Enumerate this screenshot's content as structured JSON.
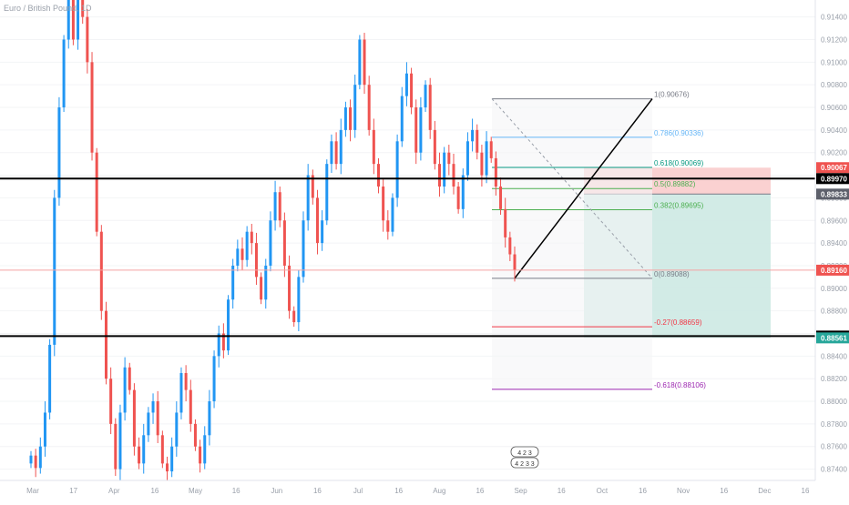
{
  "title": "Euro / British Pound, 1D",
  "chart_data": {
    "type": "candlestick",
    "y_axis": {
      "ticks": [
        0.914,
        0.912,
        0.91,
        0.908,
        0.906,
        0.904,
        0.902,
        0.9,
        0.898,
        0.896,
        0.894,
        0.892,
        0.89,
        0.888,
        0.886,
        0.884,
        0.882,
        0.88,
        0.878,
        0.876,
        0.874
      ],
      "tick_labels": [
        "0.91400",
        "0.91200",
        "0.91000",
        "0.90800",
        "0.90600",
        "0.90400",
        "0.90200",
        "0.90000",
        "0.89800",
        "0.89600",
        "0.89400",
        "0.89200",
        "0.89000",
        "0.88800",
        "0.88600",
        "0.88400",
        "0.88200",
        "0.88000",
        "0.87800",
        "0.87600",
        "0.87400"
      ],
      "range": [
        0.873,
        0.9155
      ]
    },
    "x_axis": {
      "labels": [
        "Mar",
        "17",
        "Apr",
        "16",
        "May",
        "16",
        "Jun",
        "16",
        "Jul",
        "16",
        "Aug",
        "16",
        "Sep",
        "16",
        "Oct",
        "16",
        "Nov",
        "16",
        "Dec",
        "16"
      ]
    },
    "price_tags": [
      {
        "value": 0.90067,
        "label": "0.90067",
        "color": "#ef5350",
        "text_color": "#ffffff"
      },
      {
        "value": 0.8997,
        "label": "0.89970",
        "color": "#000000",
        "text_color": "#ffffff"
      },
      {
        "value": 0.89833,
        "label": "0.89833",
        "color": "#5d606b",
        "text_color": "#ffffff"
      },
      {
        "value": 0.8916,
        "label": "0.89160",
        "color": "#ef5350",
        "text_color": "#ffffff"
      },
      {
        "value": 0.88577,
        "label": "0.88577",
        "color": "#000000",
        "text_color": "#ffffff"
      },
      {
        "value": 0.88561,
        "label": "0.88561",
        "color": "#26a69a",
        "text_color": "#ffffff"
      }
    ],
    "horizontal_lines": [
      {
        "value": 0.8997,
        "color": "#000000"
      },
      {
        "value": 0.88577,
        "color": "#000000"
      },
      {
        "value": 0.8916,
        "color": "#f4a3a3"
      }
    ],
    "fibonacci": [
      {
        "label": "1(0.90676)",
        "value": 0.90676,
        "color": "#787b86"
      },
      {
        "label": "0.786(0.90336)",
        "value": 0.90336,
        "color": "#64b5f6"
      },
      {
        "label": "0.618(0.90069)",
        "value": 0.90069,
        "color": "#089981"
      },
      {
        "label": "0.5(0.89882)",
        "value": 0.89882,
        "color": "#4caf50"
      },
      {
        "label": "0.382(0.89695)",
        "value": 0.89695,
        "color": "#4caf50"
      },
      {
        "label": "0(0.89088)",
        "value": 0.89088,
        "color": "#787b86"
      },
      {
        "label": "-0.27(0.88659)",
        "value": 0.88659,
        "color": "#f23645"
      },
      {
        "label": "-0.618(0.88106)",
        "value": 0.88106,
        "color": "#9c27b0"
      }
    ],
    "position_tool": {
      "stop": 0.90067,
      "entry": 0.89833,
      "target": 0.88561,
      "loss_color": "#f9c6c6",
      "profit_color": "#cde9e3"
    },
    "candles_seed": [
      [
        0.8745,
        0.8752
      ],
      [
        0.8752,
        0.8741
      ],
      [
        0.8741,
        0.876
      ],
      [
        0.876,
        0.879
      ],
      [
        0.879,
        0.885
      ],
      [
        0.885,
        0.898
      ],
      [
        0.898,
        0.906
      ],
      [
        0.906,
        0.912
      ],
      [
        0.912,
        0.916
      ],
      [
        0.916,
        0.912
      ],
      [
        0.912,
        0.918
      ],
      [
        0.918,
        0.914
      ],
      [
        0.914,
        0.91
      ],
      [
        0.91,
        0.902
      ],
      [
        0.902,
        0.895
      ],
      [
        0.895,
        0.888
      ],
      [
        0.888,
        0.882
      ],
      [
        0.882,
        0.878
      ],
      [
        0.878,
        0.874
      ],
      [
        0.874,
        0.879
      ],
      [
        0.879,
        0.883
      ],
      [
        0.883,
        0.881
      ],
      [
        0.881,
        0.876
      ],
      [
        0.876,
        0.8745
      ],
      [
        0.8745,
        0.877
      ],
      [
        0.877,
        0.879
      ],
      [
        0.879,
        0.88
      ],
      [
        0.88,
        0.877
      ],
      [
        0.877,
        0.8745
      ],
      [
        0.8745,
        0.8738
      ],
      [
        0.8738,
        0.876
      ],
      [
        0.876,
        0.879
      ],
      [
        0.879,
        0.8825
      ],
      [
        0.8825,
        0.881
      ],
      [
        0.881,
        0.878
      ],
      [
        0.878,
        0.876
      ],
      [
        0.876,
        0.8745
      ],
      [
        0.8745,
        0.877
      ],
      [
        0.877,
        0.88
      ],
      [
        0.88,
        0.884
      ],
      [
        0.884,
        0.886
      ],
      [
        0.886,
        0.8845
      ],
      [
        0.8845,
        0.889
      ],
      [
        0.889,
        0.892
      ],
      [
        0.892,
        0.8935
      ],
      [
        0.8935,
        0.8925
      ],
      [
        0.8925,
        0.895
      ],
      [
        0.895,
        0.894
      ],
      [
        0.894,
        0.891
      ],
      [
        0.891,
        0.889
      ],
      [
        0.889,
        0.892
      ],
      [
        0.892,
        0.896
      ],
      [
        0.896,
        0.8985
      ],
      [
        0.8985,
        0.896
      ],
      [
        0.896,
        0.892
      ],
      [
        0.892,
        0.888
      ],
      [
        0.888,
        0.887
      ],
      [
        0.887,
        0.891
      ],
      [
        0.891,
        0.896
      ],
      [
        0.896,
        0.9
      ],
      [
        0.9,
        0.898
      ],
      [
        0.898,
        0.894
      ],
      [
        0.894,
        0.896
      ],
      [
        0.896,
        0.901
      ],
      [
        0.901,
        0.903
      ],
      [
        0.903,
        0.901
      ],
      [
        0.901,
        0.904
      ],
      [
        0.904,
        0.906
      ],
      [
        0.906,
        0.904
      ],
      [
        0.904,
        0.908
      ],
      [
        0.908,
        0.912
      ],
      [
        0.912,
        0.908
      ],
      [
        0.908,
        0.904
      ],
      [
        0.904,
        0.901
      ],
      [
        0.901,
        0.899
      ],
      [
        0.899,
        0.896
      ],
      [
        0.896,
        0.895
      ],
      [
        0.895,
        0.898
      ],
      [
        0.898,
        0.903
      ],
      [
        0.903,
        0.907
      ],
      [
        0.907,
        0.909
      ],
      [
        0.909,
        0.906
      ],
      [
        0.906,
        0.902
      ],
      [
        0.902,
        0.906
      ],
      [
        0.906,
        0.908
      ],
      [
        0.908,
        0.904
      ],
      [
        0.904,
        0.901
      ],
      [
        0.901,
        0.899
      ],
      [
        0.899,
        0.902
      ],
      [
        0.902,
        0.901
      ],
      [
        0.901,
        0.899
      ],
      [
        0.899,
        0.897
      ],
      [
        0.897,
        0.9
      ],
      [
        0.9,
        0.903
      ],
      [
        0.903,
        0.904
      ],
      [
        0.904,
        0.902
      ],
      [
        0.902,
        0.9
      ],
      [
        0.9,
        0.903
      ],
      [
        0.903,
        0.9015
      ],
      [
        0.9015,
        0.899
      ],
      [
        0.899,
        0.897
      ],
      [
        0.897,
        0.8945
      ],
      [
        0.8945,
        0.893
      ],
      [
        0.893,
        0.8916
      ]
    ]
  },
  "footer_badges": [
    "4 2 3",
    "4 2 3 3"
  ]
}
